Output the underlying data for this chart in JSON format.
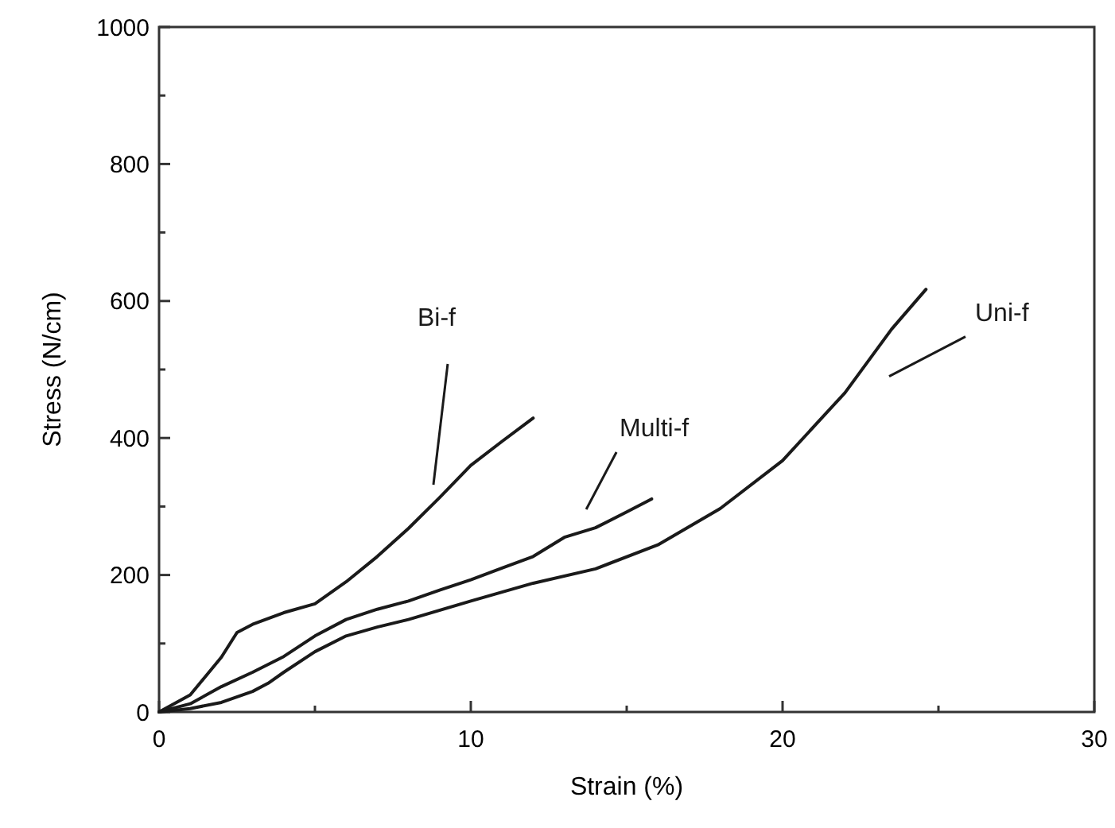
{
  "chart_data": {
    "type": "line",
    "xlabel": "Strain (%)",
    "ylabel": "Stress (N/cm)",
    "xlim": [
      0,
      30
    ],
    "ylim": [
      0,
      1000
    ],
    "xticks": [
      0,
      {
        "value": 5,
        "label": null
      },
      10,
      {
        "value": 15,
        "label": null
      },
      20,
      {
        "value": 25,
        "label": null
      },
      30
    ],
    "yticks": [
      0,
      {
        "value": 100,
        "label": null
      },
      200,
      {
        "value": 300,
        "label": null
      },
      400,
      {
        "value": 500,
        "label": null
      },
      600,
      {
        "value": 700,
        "label": null
      },
      800,
      {
        "value": 900,
        "label": null
      },
      1000
    ],
    "grid": false,
    "legend": false,
    "marker": "none",
    "line_style": "solid",
    "series": [
      {
        "name": "Bi-f",
        "color": "#1a1a1a",
        "x": [
          0,
          1,
          2,
          2.5,
          3,
          4,
          5,
          6,
          7,
          8,
          9,
          10,
          11,
          12
        ],
        "values": [
          0,
          25,
          80,
          116,
          128,
          145,
          158,
          190,
          227,
          268,
          313,
          360,
          395,
          429
        ]
      },
      {
        "name": "Multi-f",
        "color": "#1a1a1a",
        "x": [
          0,
          1,
          2,
          3,
          4,
          5,
          6,
          7,
          8,
          9,
          10,
          11,
          12,
          13,
          14,
          15,
          15.8
        ],
        "values": [
          0,
          12,
          37,
          58,
          81,
          111,
          135,
          150,
          162,
          178,
          193,
          210,
          227,
          255,
          269,
          292,
          311
        ]
      },
      {
        "name": "Uni-f",
        "color": "#1a1a1a",
        "x": [
          0,
          1,
          2,
          3,
          3.5,
          4,
          5,
          6,
          7,
          8,
          10,
          12,
          14,
          16,
          18,
          20,
          22,
          23.5,
          24.6
        ],
        "values": [
          0,
          5,
          14,
          30,
          42,
          58,
          88,
          111,
          124,
          135,
          162,
          188,
          209,
          244,
          297,
          367,
          466,
          559,
          617
        ]
      }
    ]
  }
}
